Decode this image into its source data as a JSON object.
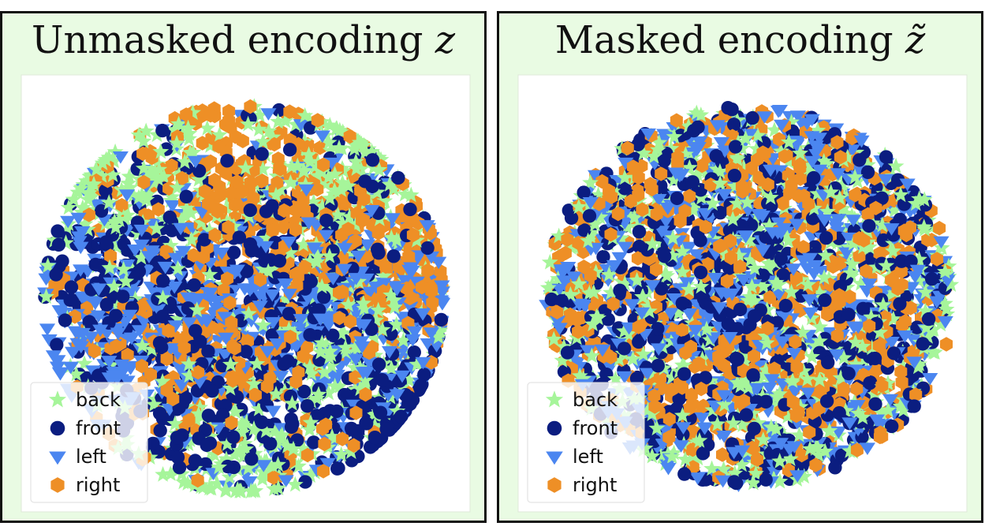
{
  "panels": [
    {
      "title": "Unmasked encoding ",
      "math": "z"
    },
    {
      "title": "Masked encoding ",
      "math": "z̃"
    }
  ],
  "colors": {
    "back": "#a6f59a",
    "front": "#0b1d80",
    "left": "#4b86f0",
    "right": "#ee8f26"
  },
  "chart_data": [
    {
      "type": "scatter",
      "title": "Unmasked encoding z",
      "grid": false,
      "legend_position": "bottom-left",
      "series": [
        {
          "name": "back",
          "marker": "star",
          "color": "#a6f59a",
          "count": 700,
          "distribution": "clustered"
        },
        {
          "name": "front",
          "marker": "circle",
          "color": "#0b1d80",
          "count": 700,
          "distribution": "clustered"
        },
        {
          "name": "left",
          "marker": "triangle-down",
          "color": "#4b86f0",
          "count": 700,
          "distribution": "clustered"
        },
        {
          "name": "right",
          "marker": "hexagon",
          "color": "#ee8f26",
          "count": 700,
          "distribution": "clustered"
        }
      ]
    },
    {
      "type": "scatter",
      "title": "Masked encoding z̃",
      "grid": false,
      "legend_position": "bottom-left",
      "series": [
        {
          "name": "back",
          "marker": "star",
          "color": "#a6f59a",
          "count": 700,
          "distribution": "uniformly mixed"
        },
        {
          "name": "front",
          "marker": "circle",
          "color": "#0b1d80",
          "count": 700,
          "distribution": "uniformly mixed"
        },
        {
          "name": "left",
          "marker": "triangle-down",
          "color": "#4b86f0",
          "count": 700,
          "distribution": "uniformly mixed"
        },
        {
          "name": "right",
          "marker": "hexagon",
          "color": "#ee8f26",
          "count": 700,
          "distribution": "uniformly mixed"
        }
      ]
    }
  ]
}
